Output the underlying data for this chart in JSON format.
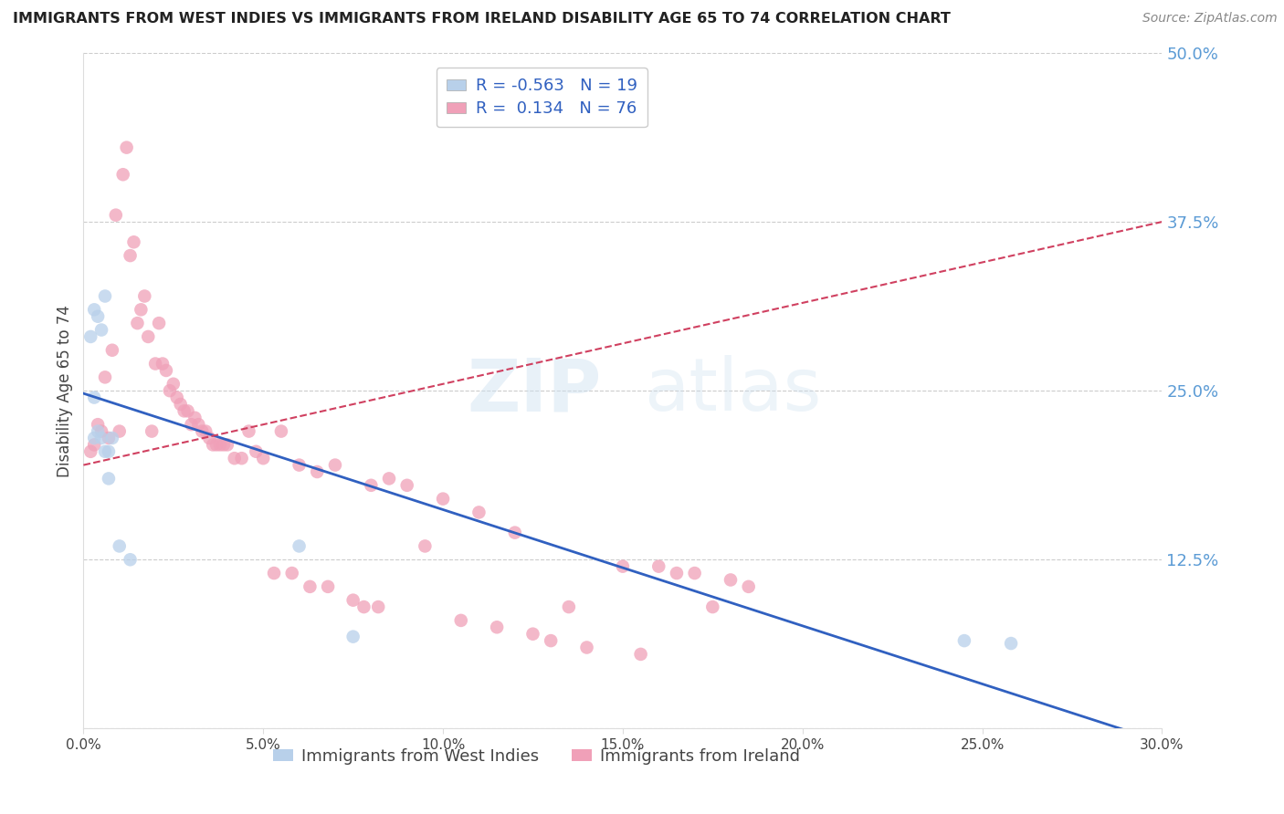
{
  "title": "IMMIGRANTS FROM WEST INDIES VS IMMIGRANTS FROM IRELAND DISABILITY AGE 65 TO 74 CORRELATION CHART",
  "source": "Source: ZipAtlas.com",
  "ylabel": "Disability Age 65 to 74",
  "xlabel_west_indies": "Immigrants from West Indies",
  "xlabel_ireland": "Immigrants from Ireland",
  "xlim": [
    0.0,
    0.3
  ],
  "ylim": [
    0.0,
    0.5
  ],
  "yticks": [
    0.0,
    0.125,
    0.25,
    0.375,
    0.5
  ],
  "ytick_labels": [
    "",
    "12.5%",
    "25.0%",
    "37.5%",
    "50.0%"
  ],
  "xticks": [
    0.0,
    0.05,
    0.1,
    0.15,
    0.2,
    0.25,
    0.3
  ],
  "xtick_labels": [
    "0.0%",
    "5.0%",
    "10.0%",
    "15.0%",
    "20.0%",
    "25.0%",
    "30.0%"
  ],
  "legend_blue_r": "R = -0.563",
  "legend_blue_n": "N = 19",
  "legend_pink_r": "R =  0.134",
  "legend_pink_n": "N = 76",
  "color_blue": "#b8d0ea",
  "color_pink": "#f0a0b8",
  "color_blue_line": "#3060c0",
  "color_pink_line": "#d04060",
  "color_axis_right": "#5b9bd5",
  "background": "#ffffff",
  "west_indies_x": [
    0.002,
    0.003,
    0.003,
    0.003,
    0.004,
    0.004,
    0.005,
    0.005,
    0.006,
    0.006,
    0.007,
    0.007,
    0.008,
    0.01,
    0.013,
    0.06,
    0.075,
    0.245,
    0.258
  ],
  "west_indies_y": [
    0.29,
    0.31,
    0.245,
    0.215,
    0.305,
    0.22,
    0.295,
    0.215,
    0.205,
    0.32,
    0.205,
    0.185,
    0.215,
    0.135,
    0.125,
    0.135,
    0.068,
    0.065,
    0.063
  ],
  "ireland_x": [
    0.002,
    0.003,
    0.004,
    0.005,
    0.006,
    0.007,
    0.008,
    0.009,
    0.01,
    0.011,
    0.012,
    0.013,
    0.014,
    0.015,
    0.016,
    0.017,
    0.018,
    0.019,
    0.02,
    0.021,
    0.022,
    0.023,
    0.024,
    0.025,
    0.026,
    0.027,
    0.028,
    0.029,
    0.03,
    0.031,
    0.032,
    0.033,
    0.034,
    0.035,
    0.036,
    0.037,
    0.038,
    0.039,
    0.04,
    0.042,
    0.044,
    0.046,
    0.048,
    0.05,
    0.053,
    0.055,
    0.058,
    0.06,
    0.063,
    0.065,
    0.068,
    0.07,
    0.075,
    0.078,
    0.08,
    0.082,
    0.085,
    0.09,
    0.095,
    0.1,
    0.105,
    0.11,
    0.115,
    0.12,
    0.125,
    0.13,
    0.135,
    0.14,
    0.15,
    0.155,
    0.16,
    0.165,
    0.17,
    0.175,
    0.18,
    0.185
  ],
  "ireland_y": [
    0.205,
    0.21,
    0.225,
    0.22,
    0.26,
    0.215,
    0.28,
    0.38,
    0.22,
    0.41,
    0.43,
    0.35,
    0.36,
    0.3,
    0.31,
    0.32,
    0.29,
    0.22,
    0.27,
    0.3,
    0.27,
    0.265,
    0.25,
    0.255,
    0.245,
    0.24,
    0.235,
    0.235,
    0.225,
    0.23,
    0.225,
    0.22,
    0.22,
    0.215,
    0.21,
    0.21,
    0.21,
    0.21,
    0.21,
    0.2,
    0.2,
    0.22,
    0.205,
    0.2,
    0.115,
    0.22,
    0.115,
    0.195,
    0.105,
    0.19,
    0.105,
    0.195,
    0.095,
    0.09,
    0.18,
    0.09,
    0.185,
    0.18,
    0.135,
    0.17,
    0.08,
    0.16,
    0.075,
    0.145,
    0.07,
    0.065,
    0.09,
    0.06,
    0.12,
    0.055,
    0.12,
    0.115,
    0.115,
    0.09,
    0.11,
    0.105
  ],
  "blue_line_x0": 0.0,
  "blue_line_y0": 0.248,
  "blue_line_x1": 0.3,
  "blue_line_y1": -0.01,
  "pink_line_x0": 0.0,
  "pink_line_y0": 0.195,
  "pink_line_x1": 0.3,
  "pink_line_y1": 0.375
}
